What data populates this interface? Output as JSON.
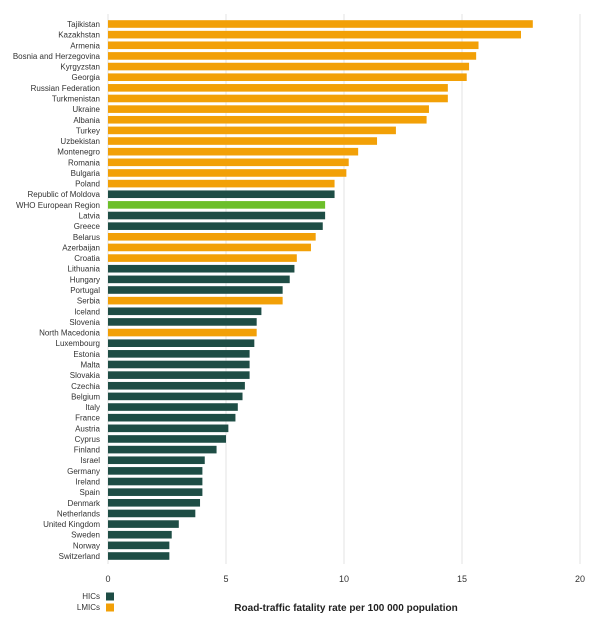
{
  "chart_data": {
    "type": "bar",
    "orientation": "horizontal",
    "xlabel": "Road-traffic fatality rate per 100 000 population",
    "xlim": [
      0,
      20
    ],
    "xticks": [
      0,
      5,
      10,
      15,
      20
    ],
    "grid": true,
    "legend_placement": "bottom-left",
    "groups": [
      {
        "name": "HICs",
        "color": "#1e4d45"
      },
      {
        "name": "LMICs",
        "color": "#f2a007"
      }
    ],
    "highlight_color": "#6cbf2a",
    "categories": [
      "Tajikistan",
      "Kazakhstan",
      "Armenia",
      "Bosnia and Herzegovina",
      "Kyrgyzstan",
      "Georgia",
      "Russian Federation",
      "Turkmenistan",
      "Ukraine",
      "Albania",
      "Turkey",
      "Uzbekistan",
      "Montenegro",
      "Romania",
      "Bulgaria",
      "Poland",
      "Republic of Moldova",
      "WHO European Region",
      "Latvia",
      "Greece",
      "Belarus",
      "Azerbaijan",
      "Croatia",
      "Lithuania",
      "Hungary",
      "Portugal",
      "Serbia",
      "Iceland",
      "Slovenia",
      "North Macedonia",
      "Luxembourg",
      "Estonia",
      "Malta",
      "Slovakia",
      "Czechia",
      "Belgium",
      "Italy",
      "France",
      "Austria",
      "Cyprus",
      "Finland",
      "Israel",
      "Germany",
      "Ireland",
      "Spain",
      "Denmark",
      "Netherlands",
      "United Kingdom",
      "Sweden",
      "Norway",
      "Switzerland"
    ],
    "values": [
      18.0,
      17.5,
      15.7,
      15.6,
      15.3,
      15.2,
      14.4,
      14.4,
      13.6,
      13.5,
      12.2,
      11.4,
      10.6,
      10.2,
      10.1,
      9.6,
      9.6,
      9.2,
      9.2,
      9.1,
      8.8,
      8.6,
      8.0,
      7.9,
      7.7,
      7.4,
      7.4,
      6.5,
      6.3,
      6.3,
      6.2,
      6.0,
      6.0,
      6.0,
      5.8,
      5.7,
      5.5,
      5.4,
      5.1,
      5.0,
      4.6,
      4.1,
      4.0,
      4.0,
      4.0,
      3.9,
      3.7,
      3.0,
      2.7,
      2.6,
      2.6
    ],
    "group": [
      "LMICs",
      "LMICs",
      "LMICs",
      "LMICs",
      "LMICs",
      "LMICs",
      "LMICs",
      "LMICs",
      "LMICs",
      "LMICs",
      "LMICs",
      "LMICs",
      "LMICs",
      "LMICs",
      "LMICs",
      "LMICs",
      "HICs",
      "Region",
      "HICs",
      "HICs",
      "LMICs",
      "LMICs",
      "LMICs",
      "HICs",
      "HICs",
      "HICs",
      "LMICs",
      "HICs",
      "HICs",
      "LMICs",
      "HICs",
      "HICs",
      "HICs",
      "HICs",
      "HICs",
      "HICs",
      "HICs",
      "HICs",
      "HICs",
      "HICs",
      "HICs",
      "HICs",
      "HICs",
      "HICs",
      "HICs",
      "HICs",
      "HICs",
      "HICs",
      "HICs",
      "HICs",
      "HICs"
    ]
  }
}
